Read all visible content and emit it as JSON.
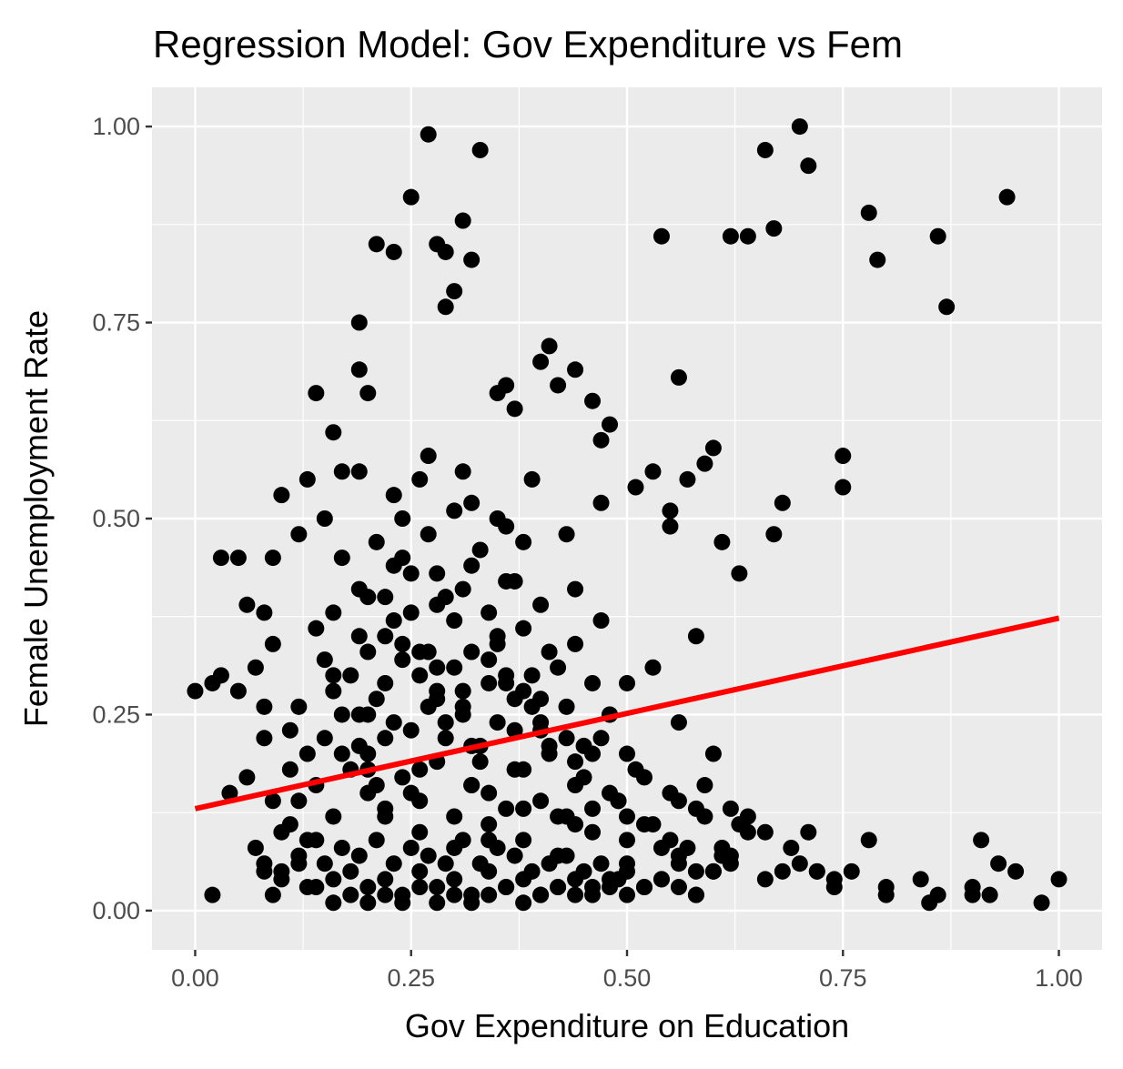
{
  "chart_data": {
    "type": "scatter",
    "title": "Regression Model: Gov Expenditure vs Fem",
    "xlabel": "Gov Expenditure on Education",
    "ylabel": "Female Unemployment Rate",
    "xlim": [
      -0.05,
      1.05
    ],
    "ylim": [
      -0.05,
      1.05
    ],
    "x_ticks": [
      0.0,
      0.25,
      0.5,
      0.75,
      1.0
    ],
    "x_tick_labels": [
      "0.00",
      "0.25",
      "0.50",
      "0.75",
      "1.00"
    ],
    "y_ticks": [
      0.0,
      0.25,
      0.5,
      0.75,
      1.0
    ],
    "y_tick_labels": [
      "0.00",
      "0.25",
      "0.50",
      "0.75",
      "1.00"
    ],
    "grid": true,
    "colors": {
      "panel": "#ebebeb",
      "grid": "#ffffff",
      "points": "#000000",
      "fit_line": "#ff0000"
    },
    "fit_line": {
      "x": [
        0.0,
        1.0
      ],
      "y": [
        0.13,
        0.373
      ]
    },
    "points": {
      "x": [
        0.0,
        0.02,
        0.03,
        0.03,
        0.05,
        0.05,
        0.06,
        0.07,
        0.08,
        0.08,
        0.09,
        0.09,
        0.1,
        0.11,
        0.12,
        0.13,
        0.14,
        0.15,
        0.16,
        0.17,
        0.19,
        0.19,
        0.2,
        0.21,
        0.23,
        0.25,
        0.27,
        0.28,
        0.29,
        0.29,
        0.3,
        0.31,
        0.32,
        0.33,
        0.35,
        0.36,
        0.37,
        0.4,
        0.41,
        0.42,
        0.44,
        0.46,
        0.47,
        0.48,
        0.53,
        0.54,
        0.55,
        0.56,
        0.57,
        0.58,
        0.6,
        0.61,
        0.62,
        0.64,
        0.66,
        0.67,
        0.68,
        0.7,
        0.71,
        0.72,
        0.75,
        0.75,
        0.78,
        0.78,
        0.79,
        0.84,
        0.86,
        0.87,
        0.9,
        0.91,
        0.93,
        0.94,
        1.0,
        0.07,
        0.08,
        0.09,
        0.1,
        0.11,
        0.12,
        0.13,
        0.14,
        0.15,
        0.16,
        0.17,
        0.18,
        0.19,
        0.2,
        0.21,
        0.22,
        0.23,
        0.24,
        0.25,
        0.26,
        0.27,
        0.28,
        0.29,
        0.3,
        0.31,
        0.32,
        0.33,
        0.34,
        0.35,
        0.36,
        0.37,
        0.38,
        0.39,
        0.4,
        0.41,
        0.42,
        0.43,
        0.44,
        0.45,
        0.46,
        0.47,
        0.48,
        0.49,
        0.5,
        0.52,
        0.54,
        0.56,
        0.58,
        0.6,
        0.12,
        0.14,
        0.16,
        0.18,
        0.2,
        0.22,
        0.24,
        0.26,
        0.28,
        0.3,
        0.32,
        0.34,
        0.36,
        0.38,
        0.4,
        0.42,
        0.44,
        0.46,
        0.48,
        0.5,
        0.15,
        0.17,
        0.19,
        0.21,
        0.23,
        0.25,
        0.27,
        0.29,
        0.31,
        0.33,
        0.35,
        0.37,
        0.39,
        0.41,
        0.43,
        0.45,
        0.18,
        0.2,
        0.22,
        0.24,
        0.26,
        0.28,
        0.3,
        0.32,
        0.34,
        0.36,
        0.38,
        0.4,
        0.16,
        0.19,
        0.22,
        0.25,
        0.28,
        0.31,
        0.34,
        0.37,
        0.21,
        0.24,
        0.27,
        0.3,
        0.33,
        0.36,
        0.1,
        0.13,
        0.16,
        0.19,
        0.22,
        0.25,
        0.28,
        0.31,
        0.34,
        0.37,
        0.4,
        0.43,
        0.46,
        0.49,
        0.52,
        0.55,
        0.58,
        0.61,
        0.64,
        0.14,
        0.17,
        0.2,
        0.23,
        0.26,
        0.29,
        0.32,
        0.35,
        0.38,
        0.41,
        0.44,
        0.47,
        0.5,
        0.53,
        0.56,
        0.59,
        0.62,
        0.66,
        0.69,
        0.72,
        0.76,
        0.8,
        0.85,
        0.9,
        0.95,
        0.08,
        0.12,
        0.16,
        0.2,
        0.24,
        0.28,
        0.32,
        0.36,
        0.4,
        0.44,
        0.48,
        0.52,
        0.56,
        0.6,
        0.64,
        0.11,
        0.15,
        0.19,
        0.23,
        0.27,
        0.31,
        0.35,
        0.39,
        0.43,
        0.47,
        0.51,
        0.55,
        0.59,
        0.63,
        0.09,
        0.13,
        0.17,
        0.21,
        0.25,
        0.29,
        0.33,
        0.37,
        0.41,
        0.45,
        0.49,
        0.53,
        0.57,
        0.61,
        0.2,
        0.22,
        0.24,
        0.26,
        0.28,
        0.3,
        0.32,
        0.34,
        0.36,
        0.38,
        0.4,
        0.42,
        0.44,
        0.46,
        0.48,
        0.5,
        0.19,
        0.23,
        0.27,
        0.31,
        0.35,
        0.39,
        0.43,
        0.47,
        0.51,
        0.55,
        0.59,
        0.63,
        0.67,
        0.71,
        0.02,
        0.04,
        0.06,
        0.08,
        0.1,
        0.12,
        0.14,
        0.16,
        0.18,
        0.2,
        0.22,
        0.24,
        0.26,
        0.28,
        0.3,
        0.32,
        0.34,
        0.36,
        0.38,
        0.4,
        0.42,
        0.44,
        0.46,
        0.48,
        0.5,
        0.52,
        0.54,
        0.56,
        0.58,
        0.6,
        0.22,
        0.26,
        0.3,
        0.34,
        0.38,
        0.42,
        0.46,
        0.5,
        0.54,
        0.58,
        0.62,
        0.66,
        0.7,
        0.74,
        0.2,
        0.26,
        0.32,
        0.38,
        0.44,
        0.5,
        0.56,
        0.62,
        0.68,
        0.74,
        0.8,
        0.86,
        0.92,
        0.98
      ],
      "y": [
        0.28,
        0.02,
        0.45,
        0.3,
        0.45,
        0.28,
        0.39,
        0.31,
        0.38,
        0.26,
        0.45,
        0.34,
        0.53,
        0.18,
        0.48,
        0.55,
        0.66,
        0.5,
        0.61,
        0.56,
        0.69,
        0.75,
        0.66,
        0.85,
        0.84,
        0.91,
        0.99,
        0.85,
        0.84,
        0.77,
        0.79,
        0.88,
        0.83,
        0.97,
        0.66,
        0.67,
        0.64,
        0.7,
        0.72,
        0.67,
        0.69,
        0.65,
        0.6,
        0.62,
        0.56,
        0.86,
        0.51,
        0.68,
        0.55,
        0.35,
        0.59,
        0.47,
        0.86,
        0.86,
        0.97,
        0.87,
        0.52,
        1.0,
        0.95,
        0.05,
        0.58,
        0.54,
        0.89,
        0.09,
        0.83,
        0.04,
        0.86,
        0.77,
        0.02,
        0.09,
        0.06,
        0.91,
        0.04,
        0.08,
        0.06,
        0.02,
        0.05,
        0.11,
        0.07,
        0.03,
        0.09,
        0.06,
        0.04,
        0.08,
        0.05,
        0.07,
        0.03,
        0.09,
        0.04,
        0.06,
        0.02,
        0.08,
        0.05,
        0.07,
        0.03,
        0.06,
        0.04,
        0.09,
        0.02,
        0.06,
        0.05,
        0.08,
        0.03,
        0.07,
        0.04,
        0.05,
        0.02,
        0.06,
        0.03,
        0.07,
        0.04,
        0.05,
        0.02,
        0.06,
        0.03,
        0.04,
        0.05,
        0.03,
        0.04,
        0.06,
        0.02,
        0.05,
        0.14,
        0.16,
        0.12,
        0.18,
        0.15,
        0.13,
        0.17,
        0.14,
        0.19,
        0.12,
        0.16,
        0.15,
        0.13,
        0.18,
        0.14,
        0.12,
        0.16,
        0.13,
        0.15,
        0.12,
        0.22,
        0.25,
        0.21,
        0.27,
        0.24,
        0.23,
        0.26,
        0.22,
        0.25,
        0.21,
        0.24,
        0.23,
        0.26,
        0.2,
        0.22,
        0.21,
        0.3,
        0.33,
        0.29,
        0.32,
        0.3,
        0.28,
        0.31,
        0.33,
        0.29,
        0.3,
        0.28,
        0.27,
        0.38,
        0.41,
        0.4,
        0.43,
        0.39,
        0.41,
        0.38,
        0.42,
        0.47,
        0.5,
        0.48,
        0.51,
        0.46,
        0.49,
        0.1,
        0.2,
        0.28,
        0.35,
        0.22,
        0.15,
        0.31,
        0.26,
        0.09,
        0.18,
        0.24,
        0.12,
        0.2,
        0.14,
        0.11,
        0.09,
        0.13,
        0.08,
        0.1,
        0.36,
        0.45,
        0.25,
        0.44,
        0.55,
        0.4,
        0.52,
        0.34,
        0.47,
        0.33,
        0.41,
        0.37,
        0.29,
        0.31,
        0.24,
        0.16,
        0.13,
        0.1,
        0.08,
        0.05,
        0.05,
        0.02,
        0.01,
        0.03,
        0.05,
        0.22,
        0.26,
        0.3,
        0.18,
        0.34,
        0.27,
        0.21,
        0.29,
        0.23,
        0.19,
        0.25,
        0.17,
        0.14,
        0.2,
        0.12,
        0.23,
        0.32,
        0.25,
        0.37,
        0.33,
        0.28,
        0.35,
        0.3,
        0.26,
        0.22,
        0.18,
        0.15,
        0.12,
        0.11,
        0.14,
        0.09,
        0.2,
        0.16,
        0.38,
        0.24,
        0.19,
        0.27,
        0.21,
        0.17,
        0.14,
        0.11,
        0.08,
        0.07,
        0.4,
        0.35,
        0.45,
        0.33,
        0.43,
        0.37,
        0.44,
        0.32,
        0.42,
        0.36,
        0.39,
        0.31,
        0.34,
        0.29,
        0.25,
        0.2,
        0.56,
        0.53,
        0.58,
        0.56,
        0.5,
        0.55,
        0.48,
        0.52,
        0.54,
        0.49,
        0.57,
        0.43,
        0.48,
        0.1,
        0.29,
        0.15,
        0.17,
        0.05,
        0.04,
        0.06,
        0.03,
        0.01,
        0.02,
        0.01,
        0.02,
        0.01,
        0.03,
        0.01,
        0.02,
        0.01,
        0.02,
        0.03,
        0.01,
        0.02,
        0.03,
        0.02,
        0.03,
        0.04,
        0.02,
        0.03,
        0.04,
        0.03,
        0.02,
        0.05,
        0.12,
        0.1,
        0.08,
        0.11,
        0.09,
        0.07,
        0.1,
        0.06,
        0.08,
        0.05,
        0.07,
        0.04,
        0.06,
        0.03,
        0.2,
        0.18,
        0.16,
        0.13,
        0.11,
        0.09,
        0.07,
        0.06,
        0.05,
        0.04,
        0.03,
        0.02,
        0.02,
        0.01
      ]
    }
  }
}
